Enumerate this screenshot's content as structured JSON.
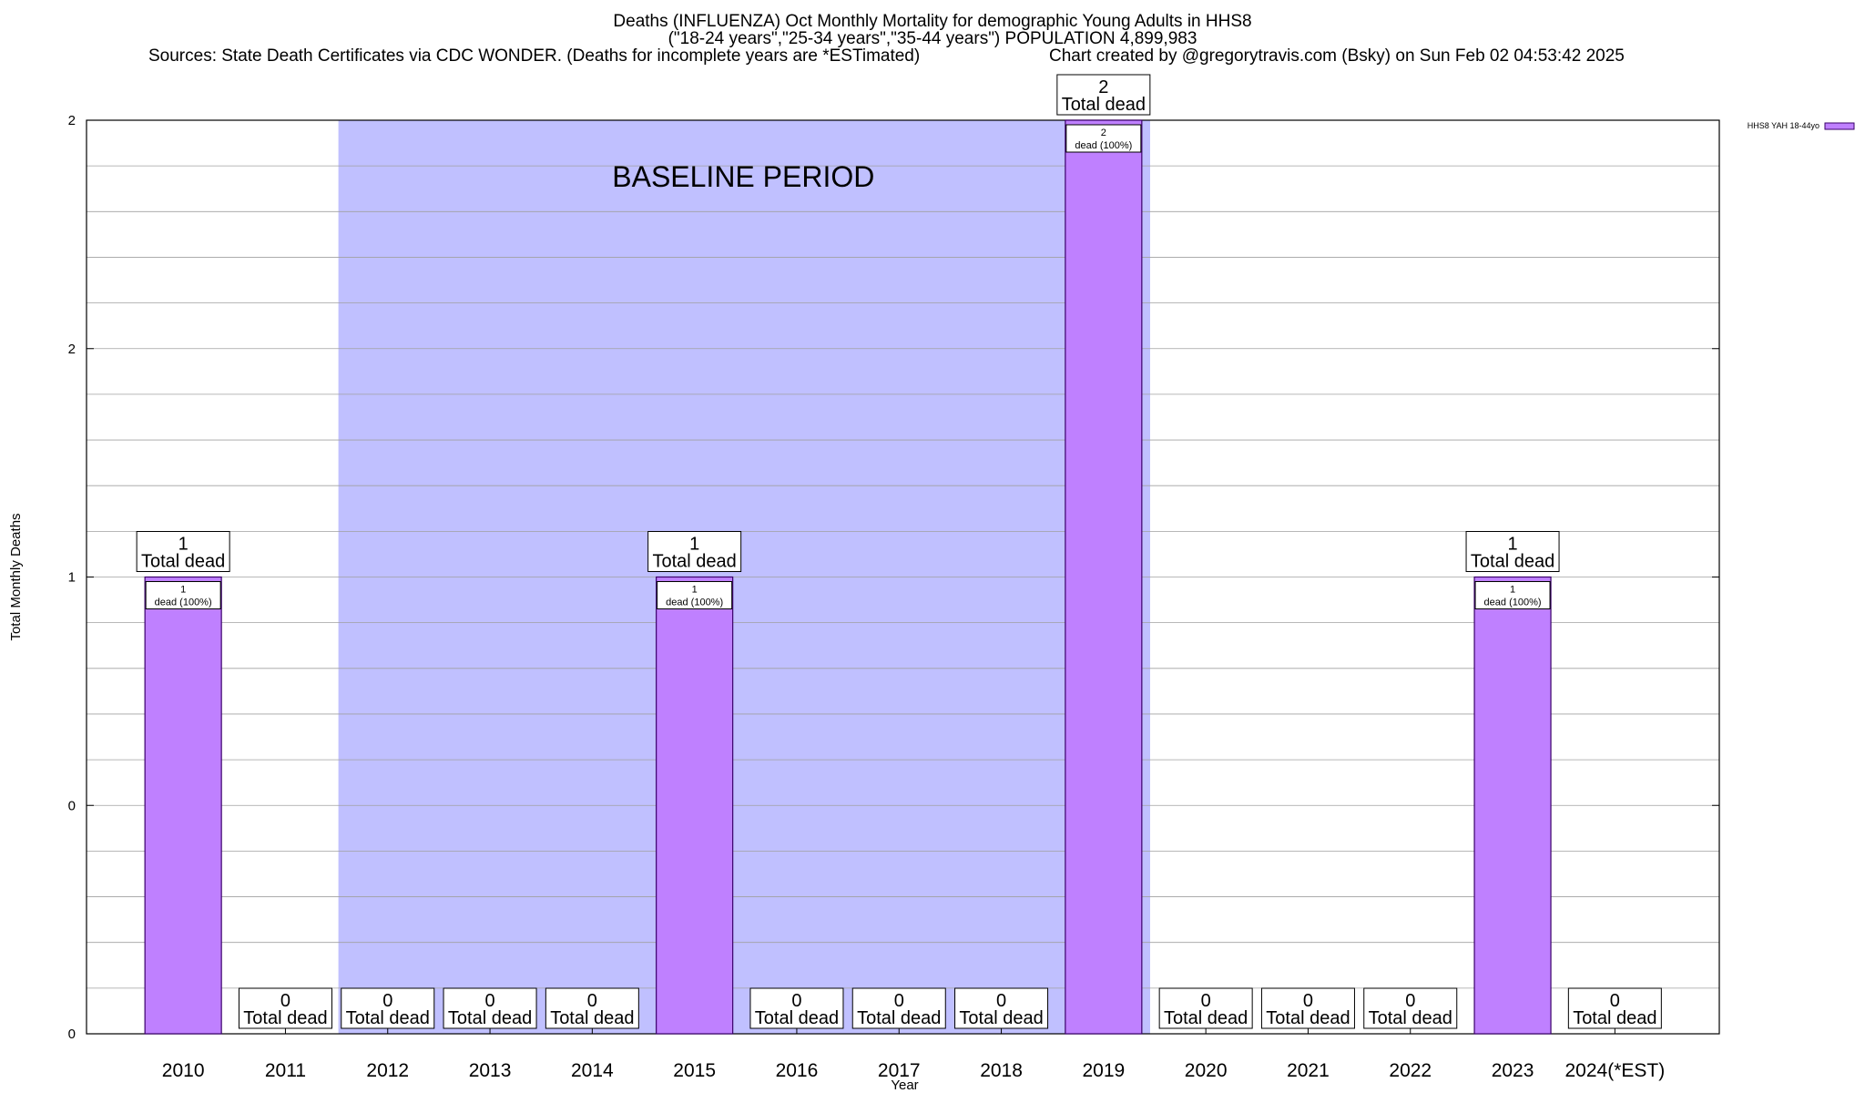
{
  "chart_data": {
    "type": "bar",
    "title": "Deaths (INFLUENZA) Oct Monthly Mortality for demographic Young Adults in HHS8",
    "subtitle": "(\"18-24 years\",\"25-34 years\",\"35-44 years\") POPULATION 4,899,983",
    "source": "Sources: State Death Certificates via CDC WONDER. (Deaths for incomplete years are *ESTimated)",
    "credit": "Chart created by @gregorytravis.com (Bsky) on Sun Feb 02 04:53:42 2025",
    "xlabel": "Year",
    "ylabel": "Total Monthly Deaths",
    "ylim": [
      0,
      2
    ],
    "y_tick_labels": [
      "0",
      "0",
      "1",
      "2",
      "2"
    ],
    "grid": true,
    "legend_position": "top-right",
    "categories": [
      "2010",
      "2011",
      "2012",
      "2013",
      "2014",
      "2015",
      "2016",
      "2017",
      "2018",
      "2019",
      "2020",
      "2021",
      "2022",
      "2023",
      "2024(*EST)"
    ],
    "series": [
      {
        "name": "HHS8 YAH 18-44yo",
        "color": "#bf80ff",
        "values": [
          1,
          0,
          0,
          0,
          0,
          1,
          0,
          0,
          0,
          2,
          0,
          0,
          0,
          1,
          0
        ]
      }
    ],
    "total_label": "Total dead",
    "bar_label": "dead (100%)",
    "baseline": {
      "label": "BASELINE PERIOD",
      "start": "2012",
      "end": "2019",
      "color": "#c0c0ff"
    }
  }
}
